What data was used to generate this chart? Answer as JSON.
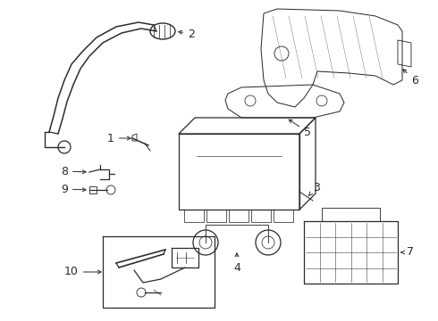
{
  "background_color": "#ffffff",
  "line_color": "#2a2a2a",
  "label_color": "#000000",
  "fig_width": 4.9,
  "fig_height": 3.6,
  "dpi": 100,
  "font_size": 9,
  "lw": 0.9
}
